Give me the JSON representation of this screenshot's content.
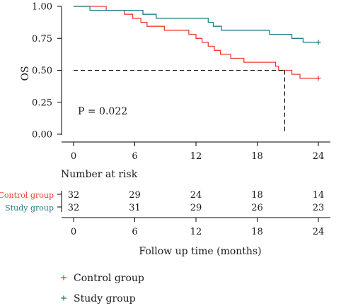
{
  "chart_data": {
    "type": "line",
    "subtype": "kaplan-meier step curve",
    "title": "",
    "xlabel": "Follow up time (months)",
    "ylabel": "OS",
    "xlim": [
      -1,
      25
    ],
    "ylim": [
      0,
      1.0
    ],
    "x_ticks": [
      0,
      6,
      12,
      18,
      24
    ],
    "x_tick_labels": [
      "0",
      "6",
      "12",
      "18",
      "24"
    ],
    "y_ticks": [
      0.0,
      0.25,
      0.5,
      0.75,
      1.0
    ],
    "y_tick_labels": [
      "0.00",
      "0.25",
      "0.50",
      "0.75",
      "1.00"
    ],
    "grid": false,
    "legend_position": "bottom-left",
    "p_value_text": "P = 0.022",
    "median_survival": {
      "x": 20.7,
      "y": 0.5,
      "style": "dashed"
    },
    "series": [
      {
        "name": "Control group",
        "color": "#ee3b33",
        "points": [
          [
            0,
            1.0
          ],
          [
            3.2,
            1.0
          ],
          [
            3.2,
            0.969
          ],
          [
            5.0,
            0.969
          ],
          [
            5.0,
            0.938
          ],
          [
            5.8,
            0.938
          ],
          [
            5.8,
            0.906
          ],
          [
            6.6,
            0.906
          ],
          [
            6.6,
            0.875
          ],
          [
            7.2,
            0.875
          ],
          [
            7.2,
            0.844
          ],
          [
            8.9,
            0.844
          ],
          [
            8.9,
            0.813
          ],
          [
            11.3,
            0.813
          ],
          [
            11.3,
            0.781
          ],
          [
            12.0,
            0.781
          ],
          [
            12.0,
            0.75
          ],
          [
            12.6,
            0.75
          ],
          [
            12.6,
            0.719
          ],
          [
            13.2,
            0.719
          ],
          [
            13.2,
            0.688
          ],
          [
            13.8,
            0.688
          ],
          [
            13.8,
            0.656
          ],
          [
            14.4,
            0.656
          ],
          [
            14.4,
            0.625
          ],
          [
            15.4,
            0.625
          ],
          [
            15.4,
            0.594
          ],
          [
            16.7,
            0.594
          ],
          [
            16.7,
            0.563
          ],
          [
            19.8,
            0.563
          ],
          [
            19.8,
            0.531
          ],
          [
            20.1,
            0.531
          ],
          [
            20.1,
            0.5
          ],
          [
            21.4,
            0.5
          ],
          [
            21.4,
            0.469
          ],
          [
            22.2,
            0.469
          ],
          [
            22.2,
            0.438
          ],
          [
            24,
            0.438
          ]
        ],
        "end_value": 0.438
      },
      {
        "name": "Study group",
        "color": "#1d8088",
        "points": [
          [
            0,
            1.0
          ],
          [
            1.6,
            1.0
          ],
          [
            1.6,
            0.969
          ],
          [
            6.8,
            0.969
          ],
          [
            6.8,
            0.938
          ],
          [
            8.1,
            0.938
          ],
          [
            8.1,
            0.906
          ],
          [
            13.2,
            0.906
          ],
          [
            13.2,
            0.875
          ],
          [
            13.7,
            0.875
          ],
          [
            13.7,
            0.844
          ],
          [
            14.5,
            0.844
          ],
          [
            14.5,
            0.813
          ],
          [
            19.2,
            0.813
          ],
          [
            19.2,
            0.781
          ],
          [
            21.4,
            0.781
          ],
          [
            21.4,
            0.75
          ],
          [
            22.5,
            0.75
          ],
          [
            22.5,
            0.719
          ],
          [
            24,
            0.719
          ]
        ],
        "end_value": 0.719
      }
    ],
    "risk_table": {
      "title": "Number at risk",
      "times": [
        0,
        6,
        12,
        18,
        24
      ],
      "time_labels": [
        "0",
        "6",
        "12",
        "18",
        "24"
      ],
      "rows": [
        {
          "group": "Control group",
          "color": "#ee3b33",
          "counts": [
            "32",
            "29",
            "24",
            "18",
            "14"
          ]
        },
        {
          "group": "Study group",
          "color": "#1d8088",
          "counts": [
            "32",
            "31",
            "29",
            "26",
            "23"
          ]
        }
      ]
    }
  }
}
